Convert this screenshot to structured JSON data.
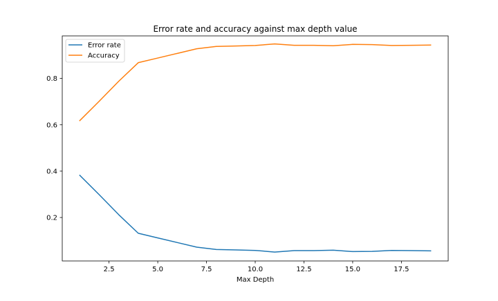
{
  "chart_data": {
    "type": "line",
    "title": "Error rate and accuracy against max depth value",
    "xlabel": "Max Depth",
    "ylabel": "",
    "xlim": [
      0.1,
      19.9
    ],
    "ylim": [
      0.0125,
      0.9835
    ],
    "x": [
      1,
      2,
      3,
      4,
      5,
      6,
      7,
      8,
      9,
      10,
      11,
      12,
      13,
      14,
      15,
      16,
      17,
      18,
      19
    ],
    "x_ticks": [
      2.5,
      5.0,
      7.5,
      10.0,
      12.5,
      15.0,
      17.5
    ],
    "x_tick_labels": [
      "2.5",
      "5.0",
      "7.5",
      "10.0",
      "12.5",
      "15.0",
      "17.5"
    ],
    "y_ticks": [
      0.2,
      0.4,
      0.6,
      0.8
    ],
    "y_tick_labels": [
      "0.2",
      "0.4",
      "0.6",
      "0.8"
    ],
    "grid": false,
    "legend_position": "top-left",
    "series": [
      {
        "name": "Error rate",
        "color": "#1f77b4",
        "values": [
          0.382,
          0.298,
          0.212,
          0.132,
          0.112,
          0.092,
          0.072,
          0.062,
          0.06,
          0.058,
          0.051,
          0.057,
          0.057,
          0.059,
          0.053,
          0.054,
          0.058,
          0.057,
          0.056
        ]
      },
      {
        "name": "Accuracy",
        "color": "#ff7f0e",
        "values": [
          0.618,
          0.702,
          0.788,
          0.868,
          0.888,
          0.908,
          0.928,
          0.938,
          0.94,
          0.942,
          0.949,
          0.943,
          0.943,
          0.941,
          0.947,
          0.946,
          0.942,
          0.943,
          0.944
        ]
      }
    ]
  }
}
